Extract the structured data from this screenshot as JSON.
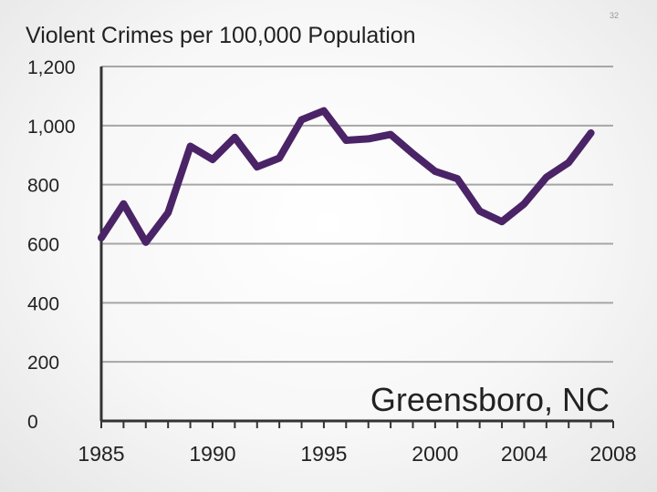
{
  "slide": {
    "number": "32"
  },
  "colors": {
    "line": "#4a2466",
    "grid": "#a6a6a6",
    "axis": "#333333",
    "text": "#222222"
  },
  "chart_data": {
    "type": "line",
    "title": "Violent Crimes per 100,000 Population",
    "annotation": "Greensboro, NC",
    "xlabel": "",
    "ylabel": "",
    "xlim": [
      1985,
      2008
    ],
    "ylim": [
      0,
      1200
    ],
    "x_ticks": [
      1985,
      1990,
      1995,
      2000,
      2004,
      2008
    ],
    "y_ticks": [
      0,
      200,
      400,
      600,
      800,
      1000,
      1200
    ],
    "y_tick_labels": [
      "0",
      "200",
      "400",
      "600",
      "800",
      "1,000",
      "1,200"
    ],
    "grid": true,
    "series": [
      {
        "name": "",
        "x": [
          1985,
          1986,
          1987,
          1988,
          1989,
          1990,
          1991,
          1992,
          1993,
          1994,
          1995,
          1996,
          1997,
          1998,
          1999,
          2000,
          2001,
          2002,
          2003,
          2004,
          2005,
          2006,
          2007
        ],
        "y": [
          620,
          735,
          605,
          705,
          930,
          885,
          960,
          860,
          890,
          1020,
          1050,
          950,
          955,
          970,
          905,
          845,
          820,
          710,
          675,
          735,
          825,
          875,
          975
        ]
      }
    ]
  }
}
